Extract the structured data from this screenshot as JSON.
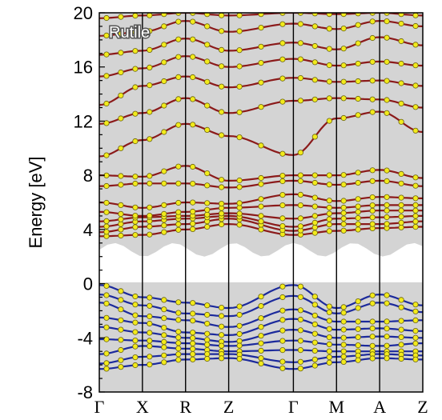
{
  "chart_data": {
    "type": "line",
    "title": "Rutile",
    "ylabel": "Energy [eV]",
    "ylim": [
      -8,
      20
    ],
    "yticks": [
      "-8",
      "-4",
      "0",
      "4",
      "8",
      "12",
      "16",
      "20"
    ],
    "ytick_values": [
      -8,
      -4,
      0,
      4,
      8,
      12,
      16,
      20
    ],
    "kpoint_labels": [
      "Γ",
      "X",
      "R",
      "Z",
      "Γ",
      "M",
      "A",
      "Z"
    ],
    "kpoint_positions": [
      0,
      1,
      2,
      3,
      4.5,
      5.5,
      6.5,
      7.5
    ],
    "band_gap_shading": {
      "below": 2.0,
      "above_varies": [
        2.0,
        3.0
      ]
    },
    "colors": {
      "conduction": "#8b1a1a",
      "valence": "#1c2a9c",
      "dots": "#f2ea1c",
      "dot_stroke": "#6b6410",
      "shade": "#d4d4d4"
    },
    "series": [
      {
        "name": "",
        "group": "valence",
        "values": [
          [
            0,
            -0.1
          ],
          [
            1,
            -1.0
          ],
          [
            2,
            -1.4
          ],
          [
            3,
            -1.8
          ],
          [
            4.5,
            -0.1
          ],
          [
            5.5,
            -1.8
          ],
          [
            6.5,
            -0.8
          ],
          [
            7.5,
            -1.6
          ]
        ]
      },
      {
        "name": "",
        "group": "valence",
        "values": [
          [
            0,
            -0.8
          ],
          [
            1,
            -1.6
          ],
          [
            2,
            -2.2
          ],
          [
            3,
            -2.4
          ],
          [
            4.5,
            -0.9
          ],
          [
            5.5,
            -2.2
          ],
          [
            6.5,
            -1.4
          ],
          [
            7.5,
            -2.1
          ]
        ]
      },
      {
        "name": "",
        "group": "valence",
        "values": [
          [
            0,
            -1.4
          ],
          [
            1,
            -2.4
          ],
          [
            2,
            -2.7
          ],
          [
            3,
            -3.2
          ],
          [
            4.5,
            -1.9
          ],
          [
            5.5,
            -2.8
          ],
          [
            6.5,
            -2.8
          ],
          [
            7.5,
            -2.7
          ]
        ]
      },
      {
        "name": "",
        "group": "valence",
        "values": [
          [
            0,
            -2.5
          ],
          [
            1,
            -2.9
          ],
          [
            2,
            -3.6
          ],
          [
            3,
            -3.8
          ],
          [
            4.5,
            -2.6
          ],
          [
            5.5,
            -3.4
          ],
          [
            6.5,
            -3.3
          ],
          [
            7.5,
            -3.5
          ]
        ]
      },
      {
        "name": "",
        "group": "valence",
        "values": [
          [
            0,
            -3.2
          ],
          [
            1,
            -3.6
          ],
          [
            2,
            -4.0
          ],
          [
            3,
            -4.3
          ],
          [
            4.5,
            -3.4
          ],
          [
            5.5,
            -4.0
          ],
          [
            6.5,
            -3.9
          ],
          [
            7.5,
            -4.0
          ]
        ]
      },
      {
        "name": "",
        "group": "valence",
        "values": [
          [
            0,
            -4.1
          ],
          [
            1,
            -4.2
          ],
          [
            2,
            -4.4
          ],
          [
            3,
            -4.6
          ],
          [
            4.5,
            -4.2
          ],
          [
            5.5,
            -4.5
          ],
          [
            6.5,
            -4.6
          ],
          [
            7.5,
            -4.4
          ]
        ]
      },
      {
        "name": "",
        "group": "valence",
        "values": [
          [
            0,
            -5.2
          ],
          [
            1,
            -4.6
          ],
          [
            2,
            -4.8
          ],
          [
            3,
            -5.0
          ],
          [
            4.5,
            -4.9
          ],
          [
            5.5,
            -5.0
          ],
          [
            6.5,
            -5.0
          ],
          [
            7.5,
            -5.0
          ]
        ]
      },
      {
        "name": "",
        "group": "valence",
        "values": [
          [
            0,
            -5.9
          ],
          [
            1,
            -5.4
          ],
          [
            2,
            -5.2
          ],
          [
            3,
            -5.2
          ],
          [
            4.5,
            -5.8
          ],
          [
            5.5,
            -5.4
          ],
          [
            6.5,
            -5.2
          ],
          [
            7.5,
            -5.3
          ]
        ]
      },
      {
        "name": "",
        "group": "valence",
        "values": [
          [
            0,
            -6.3
          ],
          [
            1,
            -6.0
          ],
          [
            2,
            -5.6
          ],
          [
            3,
            -5.5
          ],
          [
            4.5,
            -6.3
          ],
          [
            5.5,
            -5.8
          ],
          [
            6.5,
            -5.5
          ],
          [
            7.5,
            -5.6
          ]
        ]
      },
      {
        "name": "",
        "group": "conduction",
        "values": [
          [
            0,
            3.5
          ],
          [
            1,
            3.6
          ],
          [
            2,
            4.0
          ],
          [
            3,
            4.4
          ],
          [
            4.5,
            3.6
          ],
          [
            5.5,
            3.9
          ],
          [
            6.5,
            4.1
          ],
          [
            7.5,
            4.2
          ]
        ]
      },
      {
        "name": "",
        "group": "conduction",
        "values": [
          [
            0,
            3.8
          ],
          [
            1,
            4.2
          ],
          [
            2,
            4.4
          ],
          [
            3,
            4.8
          ],
          [
            4.5,
            3.9
          ],
          [
            5.5,
            4.4
          ],
          [
            6.5,
            4.4
          ],
          [
            7.5,
            4.6
          ]
        ]
      },
      {
        "name": "",
        "group": "conduction",
        "values": [
          [
            0,
            4.2
          ],
          [
            1,
            4.6
          ],
          [
            2,
            4.8
          ],
          [
            3,
            5.0
          ],
          [
            4.5,
            4.2
          ],
          [
            5.5,
            4.8
          ],
          [
            6.5,
            4.9
          ],
          [
            7.5,
            5.0
          ]
        ]
      },
      {
        "name": "",
        "group": "conduction",
        "values": [
          [
            0,
            4.6
          ],
          [
            1,
            4.9
          ],
          [
            2,
            5.0
          ],
          [
            3,
            5.2
          ],
          [
            4.5,
            4.8
          ],
          [
            5.5,
            5.2
          ],
          [
            6.5,
            5.4
          ],
          [
            7.5,
            5.4
          ]
        ]
      },
      {
        "name": "",
        "group": "conduction",
        "values": [
          [
            0,
            5.3
          ],
          [
            1,
            5.0
          ],
          [
            2,
            5.3
          ],
          [
            3,
            5.6
          ],
          [
            4.5,
            5.8
          ],
          [
            5.5,
            5.6
          ],
          [
            6.5,
            5.8
          ],
          [
            7.5,
            5.8
          ]
        ]
      },
      {
        "name": "",
        "group": "conduction",
        "values": [
          [
            0,
            6.0
          ],
          [
            1,
            5.6
          ],
          [
            2,
            6.0
          ],
          [
            3,
            5.9
          ],
          [
            4.5,
            6.6
          ],
          [
            5.5,
            6.1
          ],
          [
            6.5,
            6.4
          ],
          [
            7.5,
            6.3
          ]
        ]
      },
      {
        "name": "",
        "group": "conduction",
        "values": [
          [
            0,
            7.2
          ],
          [
            1,
            7.4
          ],
          [
            2,
            7.4
          ],
          [
            3,
            7.1
          ],
          [
            4.5,
            7.6
          ],
          [
            5.5,
            7.3
          ],
          [
            6.5,
            7.6
          ],
          [
            7.5,
            7.2
          ]
        ]
      },
      {
        "name": "",
        "group": "conduction",
        "values": [
          [
            0,
            8.0
          ],
          [
            1,
            7.9
          ],
          [
            2,
            8.7
          ],
          [
            3,
            7.6
          ],
          [
            4.5,
            8.0
          ],
          [
            5.5,
            8.0
          ],
          [
            6.5,
            8.4
          ],
          [
            7.5,
            7.8
          ]
        ]
      },
      {
        "name": "",
        "group": "conduction",
        "values": [
          [
            0,
            9.4
          ],
          [
            1,
            10.6
          ],
          [
            2,
            11.8
          ],
          [
            3,
            10.9
          ],
          [
            4.5,
            9.5
          ],
          [
            5.5,
            12.2
          ],
          [
            6.5,
            12.7
          ],
          [
            7.5,
            11.2
          ]
        ]
      },
      {
        "name": "",
        "group": "conduction",
        "values": [
          [
            0,
            11.8
          ],
          [
            1,
            12.6
          ],
          [
            2,
            13.7
          ],
          [
            3,
            12.6
          ],
          [
            4.5,
            13.5
          ],
          [
            5.5,
            13.7
          ],
          [
            6.5,
            13.6
          ],
          [
            7.5,
            13.0
          ]
        ]
      },
      {
        "name": "",
        "group": "conduction",
        "values": [
          [
            0,
            13.2
          ],
          [
            1,
            14.6
          ],
          [
            2,
            15.3
          ],
          [
            3,
            14.5
          ],
          [
            4.5,
            15.2
          ],
          [
            5.5,
            14.9
          ],
          [
            6.5,
            15.0
          ],
          [
            7.5,
            14.6
          ]
        ]
      },
      {
        "name": "",
        "group": "conduction",
        "values": [
          [
            0,
            15.3
          ],
          [
            1,
            15.9
          ],
          [
            2,
            16.8
          ],
          [
            3,
            16.0
          ],
          [
            4.5,
            16.6
          ],
          [
            5.5,
            16.1
          ],
          [
            6.5,
            16.4
          ],
          [
            7.5,
            16.1
          ]
        ]
      },
      {
        "name": "",
        "group": "conduction",
        "values": [
          [
            0,
            16.9
          ],
          [
            1,
            17.2
          ],
          [
            2,
            18.1
          ],
          [
            3,
            17.2
          ],
          [
            4.5,
            17.8
          ],
          [
            5.5,
            17.3
          ],
          [
            6.5,
            18.2
          ],
          [
            7.5,
            17.6
          ]
        ]
      },
      {
        "name": "",
        "group": "conduction",
        "values": [
          [
            0,
            18.3
          ],
          [
            1,
            18.6
          ],
          [
            2,
            19.4
          ],
          [
            3,
            18.6
          ],
          [
            4.5,
            19.2
          ],
          [
            5.5,
            18.8
          ],
          [
            6.5,
            19.4
          ],
          [
            7.5,
            19.0
          ]
        ]
      },
      {
        "name": "",
        "group": "conduction",
        "values": [
          [
            0,
            19.6
          ],
          [
            1,
            19.8
          ],
          [
            2,
            20.0
          ],
          [
            3,
            19.8
          ],
          [
            4.5,
            20.0
          ],
          [
            5.5,
            19.9
          ],
          [
            6.5,
            20.0
          ],
          [
            7.5,
            19.8
          ]
        ]
      }
    ]
  }
}
